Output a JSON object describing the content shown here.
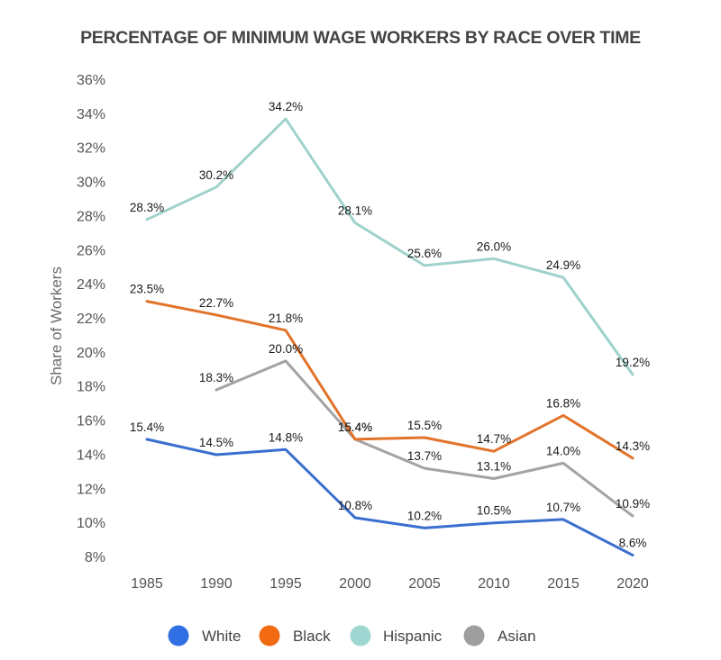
{
  "chart_data": {
    "type": "line",
    "title": "PERCENTAGE OF MINIMUM WAGE WORKERS BY RACE OVER TIME",
    "xlabel": "",
    "ylabel": "Share of Workers",
    "x": [
      "1985",
      "1990",
      "1995",
      "2000",
      "2005",
      "2010",
      "2015",
      "2020"
    ],
    "ylim": [
      8,
      36
    ],
    "yticks": [
      8,
      10,
      12,
      14,
      16,
      18,
      20,
      22,
      24,
      26,
      28,
      30,
      32,
      34,
      36
    ],
    "ytick_labels": [
      "8%",
      "10%",
      "12%",
      "14%",
      "16%",
      "18%",
      "20%",
      "22%",
      "24%",
      "26%",
      "28%",
      "30%",
      "32%",
      "34%",
      "36%"
    ],
    "grid": false,
    "legend_position": "bottom",
    "series": [
      {
        "name": "White",
        "color": "#3a6fcf",
        "legend_color": "#2f6fe3",
        "values": [
          15.4,
          14.5,
          14.8,
          10.8,
          10.2,
          10.5,
          10.7,
          8.6
        ],
        "labels": [
          "15.4%",
          "14.5%",
          "14.8%",
          "10.8%",
          "10.2%",
          "10.5%",
          "10.7%",
          "8.6%"
        ]
      },
      {
        "name": "Black",
        "color": "#e2732a",
        "legend_color": "#f26a12",
        "values": [
          23.5,
          22.7,
          21.8,
          15.4,
          15.5,
          14.7,
          16.8,
          14.3
        ],
        "labels": [
          "23.5%",
          "22.7%",
          "21.8%",
          "15.4%",
          "15.5%",
          "14.7%",
          "16.8%",
          "14.3%"
        ]
      },
      {
        "name": "Hispanic",
        "color": "#9fd2cb",
        "legend_color": "#9fd6d2",
        "values": [
          28.3,
          30.2,
          34.2,
          28.1,
          25.6,
          26.0,
          24.9,
          19.2
        ],
        "labels": [
          "28.3%",
          "30.2%",
          "34.2%",
          "28.1%",
          "25.6%",
          "26.0%",
          "24.9%",
          "19.2%"
        ]
      },
      {
        "name": "Asian",
        "color": "#a3a3a3",
        "legend_color": "#9e9e9e",
        "values": [
          null,
          18.3,
          20.0,
          15.4,
          13.7,
          13.1,
          14.0,
          10.9
        ],
        "labels": [
          null,
          "18.3%",
          "20.0%",
          "15.4%",
          "13.7%",
          "13.1%",
          "14.0%",
          "10.9%"
        ]
      }
    ]
  }
}
